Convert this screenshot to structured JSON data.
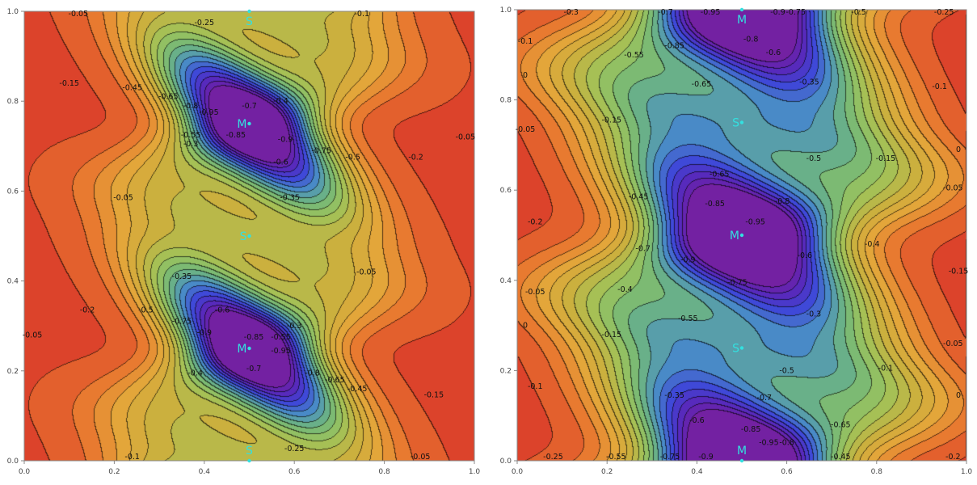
{
  "chart_data": [
    {
      "type": "heatmap",
      "subtype": "contour",
      "x": {
        "range": [
          0,
          1
        ],
        "ticks": [
          "0.0",
          "0.2",
          "0.4",
          "0.6",
          "0.8",
          "1.0"
        ]
      },
      "y": {
        "range": [
          0,
          1
        ],
        "ticks": [
          "0.0",
          "0.2",
          "0.4",
          "0.6",
          "0.8",
          "1.0"
        ]
      },
      "value_range": [
        -1,
        0
      ],
      "colormap": [
        "#d8352a",
        "#e8742e",
        "#e4a63a",
        "#c9b13e",
        "#9fc35a",
        "#6fb77c",
        "#4a8fc6",
        "#3f47d8",
        "#5a26b8",
        "#7a1f9c"
      ],
      "contour_levels": [
        -0.95,
        -0.9,
        -0.85,
        -0.8,
        -0.75,
        -0.7,
        -0.65,
        -0.6,
        -0.55,
        -0.5,
        -0.45,
        -0.4,
        -0.35,
        -0.3,
        -0.25,
        -0.2,
        -0.15,
        -0.1,
        -0.05
      ],
      "minima": [
        {
          "label": "M",
          "x": 0.5,
          "y": 0.75
        },
        {
          "label": "M",
          "x": 0.5,
          "y": 0.25
        }
      ],
      "saddles": [
        {
          "label": "S",
          "x": 0.5,
          "y": 1.0
        },
        {
          "label": "S",
          "x": 0.5,
          "y": 0.5
        },
        {
          "label": "S",
          "x": 0.5,
          "y": 0.0
        }
      ],
      "contour_labels": [
        {
          "text": "-0.05",
          "x": 0.12,
          "y": 1.0
        },
        {
          "text": "-0.25",
          "x": 0.4,
          "y": 0.975
        },
        {
          "text": "-0.1",
          "x": 0.75,
          "y": 0.995
        },
        {
          "text": "-0.15",
          "x": 0.1,
          "y": 0.84
        },
        {
          "text": "-0.45",
          "x": 0.24,
          "y": 0.83
        },
        {
          "text": "-0.65",
          "x": 0.32,
          "y": 0.81
        },
        {
          "text": "-0.8",
          "x": 0.37,
          "y": 0.79
        },
        {
          "text": "-0.95",
          "x": 0.41,
          "y": 0.775
        },
        {
          "text": "-0.7",
          "x": 0.5,
          "y": 0.79
        },
        {
          "text": "-0.4",
          "x": 0.57,
          "y": 0.8
        },
        {
          "text": "-0.55",
          "x": 0.37,
          "y": 0.725
        },
        {
          "text": "-0.85",
          "x": 0.47,
          "y": 0.725
        },
        {
          "text": "-0.9",
          "x": 0.58,
          "y": 0.715
        },
        {
          "text": "-0.3",
          "x": 0.37,
          "y": 0.705
        },
        {
          "text": "-0.75",
          "x": 0.66,
          "y": 0.69
        },
        {
          "text": "-0.6",
          "x": 0.57,
          "y": 0.665
        },
        {
          "text": "-0.5",
          "x": 0.73,
          "y": 0.675
        },
        {
          "text": "-0.2",
          "x": 0.87,
          "y": 0.675
        },
        {
          "text": "-0.05",
          "x": 0.98,
          "y": 0.72
        },
        {
          "text": "-0.35",
          "x": 0.59,
          "y": 0.585
        },
        {
          "text": "-0.05",
          "x": 0.22,
          "y": 0.585
        },
        {
          "text": "-0.05",
          "x": 0.76,
          "y": 0.42
        },
        {
          "text": "-0.35",
          "x": 0.35,
          "y": 0.41
        },
        {
          "text": "-0.2",
          "x": 0.14,
          "y": 0.335
        },
        {
          "text": "-0.5",
          "x": 0.27,
          "y": 0.335
        },
        {
          "text": "-0.6",
          "x": 0.44,
          "y": 0.335
        },
        {
          "text": "-0.75",
          "x": 0.35,
          "y": 0.31
        },
        {
          "text": "-0.9",
          "x": 0.4,
          "y": 0.285
        },
        {
          "text": "-0.3",
          "x": 0.6,
          "y": 0.3
        },
        {
          "text": "-0.55",
          "x": 0.57,
          "y": 0.275
        },
        {
          "text": "-0.85",
          "x": 0.51,
          "y": 0.275
        },
        {
          "text": "-0.95",
          "x": 0.57,
          "y": 0.245
        },
        {
          "text": "-0.7",
          "x": 0.51,
          "y": 0.205
        },
        {
          "text": "-0.4",
          "x": 0.38,
          "y": 0.195
        },
        {
          "text": "-0.8",
          "x": 0.64,
          "y": 0.195
        },
        {
          "text": "-0.65",
          "x": 0.69,
          "y": 0.18
        },
        {
          "text": "-0.45",
          "x": 0.74,
          "y": 0.16
        },
        {
          "text": "-0.15",
          "x": 0.91,
          "y": 0.147
        },
        {
          "text": "-0.05",
          "x": 0.01,
          "y": 0.28
        },
        {
          "text": "-0.25",
          "x": 0.6,
          "y": 0.027
        },
        {
          "text": "-0.1",
          "x": 0.24,
          "y": 0.0
        },
        {
          "text": "-0.05",
          "x": 0.88,
          "y": 0.0
        }
      ]
    },
    {
      "type": "heatmap",
      "subtype": "contour",
      "x": {
        "range": [
          0,
          1
        ],
        "ticks": [
          "0.0",
          "0.2",
          "0.4",
          "0.6",
          "0.8",
          "1.0"
        ]
      },
      "y": {
        "range": [
          0,
          1
        ],
        "ticks": [
          "0.0",
          "0.2",
          "0.4",
          "0.6",
          "0.8",
          "1.0"
        ]
      },
      "value_range": [
        -1,
        0
      ],
      "colormap": [
        "#d8352a",
        "#e8742e",
        "#e4a63a",
        "#c9b13e",
        "#9fc35a",
        "#6fb77c",
        "#4a8fc6",
        "#3f47d8",
        "#5a26b8",
        "#7a1f9c"
      ],
      "contour_levels": [
        -0.95,
        -0.9,
        -0.85,
        -0.8,
        -0.75,
        -0.7,
        -0.65,
        -0.6,
        -0.55,
        -0.5,
        -0.45,
        -0.4,
        -0.35,
        -0.3,
        -0.25,
        -0.2,
        -0.15,
        -0.1,
        -0.05,
        0
      ],
      "minima": [
        {
          "label": "M",
          "x": 0.5,
          "y": 1.0
        },
        {
          "label": "M",
          "x": 0.5,
          "y": 0.5
        },
        {
          "label": "M",
          "x": 0.5,
          "y": 0.0
        }
      ],
      "saddles": [
        {
          "label": "S",
          "x": 0.5,
          "y": 0.75
        },
        {
          "label": "S",
          "x": 0.5,
          "y": 0.25
        }
      ],
      "contour_labels": [
        {
          "text": "-0.3",
          "x": 0.12,
          "y": 0.995
        },
        {
          "text": "-0.7",
          "x": 0.33,
          "y": 0.995
        },
        {
          "text": "-0.95",
          "x": 0.43,
          "y": 0.995
        },
        {
          "text": "-0.9",
          "x": 0.58,
          "y": 0.995
        },
        {
          "text": "-0.75",
          "x": 0.62,
          "y": 0.995
        },
        {
          "text": "-0.5",
          "x": 0.76,
          "y": 0.995
        },
        {
          "text": "-0.25",
          "x": 0.95,
          "y": 0.995
        },
        {
          "text": "-0.1",
          "x": 0.01,
          "y": 0.93
        },
        {
          "text": "-0.8",
          "x": 0.52,
          "y": 0.935
        },
        {
          "text": "-0.85",
          "x": 0.35,
          "y": 0.92
        },
        {
          "text": "-0.6",
          "x": 0.57,
          "y": 0.905
        },
        {
          "text": "-0.55",
          "x": 0.26,
          "y": 0.9
        },
        {
          "text": "-0.35",
          "x": 0.65,
          "y": 0.84
        },
        {
          "text": "-0.65",
          "x": 0.41,
          "y": 0.835
        },
        {
          "text": "-0.1",
          "x": 0.94,
          "y": 0.83
        },
        {
          "text": "0",
          "x": 0.01,
          "y": 0.855
        },
        {
          "text": "-0.15",
          "x": 0.21,
          "y": 0.755
        },
        {
          "text": "-0.05",
          "x": 0.01,
          "y": 0.735
        },
        {
          "text": "0",
          "x": 0.99,
          "y": 0.69
        },
        {
          "text": "-0.15",
          "x": 0.82,
          "y": 0.67
        },
        {
          "text": "-0.5",
          "x": 0.66,
          "y": 0.67
        },
        {
          "text": "-0.65",
          "x": 0.45,
          "y": 0.635
        },
        {
          "text": "-0.05",
          "x": 0.97,
          "y": 0.605
        },
        {
          "text": "-0.45",
          "x": 0.27,
          "y": 0.585
        },
        {
          "text": "-0.85",
          "x": 0.44,
          "y": 0.57
        },
        {
          "text": "-0.8",
          "x": 0.59,
          "y": 0.575
        },
        {
          "text": "-0.2",
          "x": 0.04,
          "y": 0.53
        },
        {
          "text": "-0.95",
          "x": 0.53,
          "y": 0.53
        },
        {
          "text": "-0.4",
          "x": 0.79,
          "y": 0.48
        },
        {
          "text": "-0.7",
          "x": 0.28,
          "y": 0.47
        },
        {
          "text": "-0.9",
          "x": 0.38,
          "y": 0.445
        },
        {
          "text": "-0.6",
          "x": 0.64,
          "y": 0.455
        },
        {
          "text": "-0.15",
          "x": 0.99,
          "y": 0.42
        },
        {
          "text": "-0.75",
          "x": 0.49,
          "y": 0.395
        },
        {
          "text": "-0.05",
          "x": 0.04,
          "y": 0.375
        },
        {
          "text": "-0.4",
          "x": 0.24,
          "y": 0.38
        },
        {
          "text": "-0.3",
          "x": 0.66,
          "y": 0.325
        },
        {
          "text": "-0.55",
          "x": 0.38,
          "y": 0.315
        },
        {
          "text": "0",
          "x": 0.0,
          "y": 0.3
        },
        {
          "text": "-0.15",
          "x": 0.21,
          "y": 0.28
        },
        {
          "text": "-0.05",
          "x": 0.97,
          "y": 0.26
        },
        {
          "text": "-0.1",
          "x": 0.82,
          "y": 0.205
        },
        {
          "text": "-0.5",
          "x": 0.6,
          "y": 0.2
        },
        {
          "text": "-0.1",
          "x": 0.04,
          "y": 0.165
        },
        {
          "text": "-0.35",
          "x": 0.35,
          "y": 0.145
        },
        {
          "text": "-0.7",
          "x": 0.55,
          "y": 0.14
        },
        {
          "text": "0",
          "x": 0.99,
          "y": 0.145
        },
        {
          "text": "-0.6",
          "x": 0.4,
          "y": 0.09
        },
        {
          "text": "-0.65",
          "x": 0.72,
          "y": 0.08
        },
        {
          "text": "-0.85",
          "x": 0.52,
          "y": 0.07
        },
        {
          "text": "-0.8",
          "x": 0.6,
          "y": 0.04
        },
        {
          "text": "-0.95",
          "x": 0.56,
          "y": 0.04
        },
        {
          "text": "-0.25",
          "x": 0.08,
          "y": 0.005
        },
        {
          "text": "-0.55",
          "x": 0.22,
          "y": 0.005
        },
        {
          "text": "-0.75",
          "x": 0.34,
          "y": 0.005
        },
        {
          "text": "-0.9",
          "x": 0.42,
          "y": 0.005
        },
        {
          "text": "-0.45",
          "x": 0.72,
          "y": 0.005
        },
        {
          "text": "-0.2",
          "x": 0.97,
          "y": 0.005
        }
      ]
    }
  ]
}
